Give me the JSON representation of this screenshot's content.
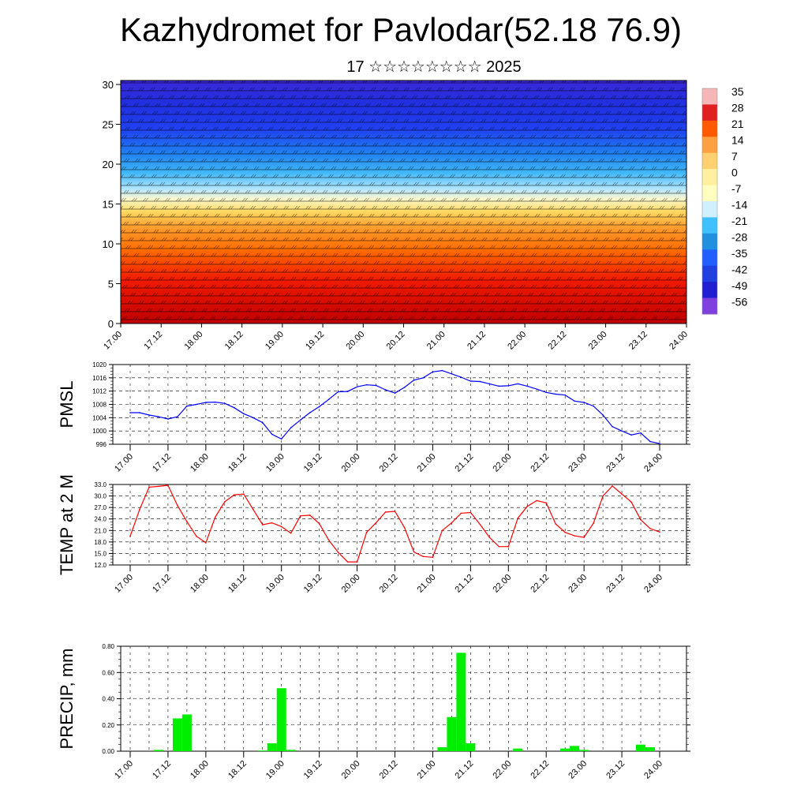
{
  "title": "Kazhydromet for Pavlodar(52.18 76.9)",
  "subtitle": "17 ☆☆☆☆☆☆☆☆ 2025",
  "time_labels": [
    "17.00",
    "17.12",
    "18.00",
    "18.12",
    "19.00",
    "19.12",
    "20.00",
    "20.12",
    "21.00",
    "21.12",
    "22.00",
    "22.12",
    "23.00",
    "23.12",
    "24.00"
  ],
  "colors": {
    "pmsl_line": "#0000ff",
    "temp_line": "#ff0000",
    "precip_bar": "#00ee00"
  },
  "chart_data": [
    {
      "type": "heatmap",
      "title": "",
      "y_ticks": [
        0,
        5,
        10,
        15,
        20,
        25,
        30
      ],
      "ylim": [
        0,
        30.5
      ],
      "x_tick_labels": [
        "17.00",
        "17.12",
        "18.00",
        "18.12",
        "19.00",
        "19.12",
        "20.00",
        "20.12",
        "21.00",
        "21.12",
        "22.00",
        "22.12",
        "23.00",
        "23.12",
        "24.00"
      ],
      "colorbar_labels": [
        "35",
        "28",
        "21",
        "14",
        "7",
        "0",
        "-7",
        "-14",
        "-21",
        "-28",
        "-35",
        "-42",
        "-49",
        "-56"
      ],
      "colorbar_colors": [
        "#f4b6b6",
        "#e02020",
        "#ff5a00",
        "#ffa040",
        "#ffd070",
        "#fff0a0",
        "#ffffc0",
        "#d0f0ff",
        "#40c0ff",
        "#2090e0",
        "#2060ff",
        "#2040e0",
        "#2020d0",
        "#8040e0"
      ]
    },
    {
      "type": "line",
      "ylabel": "PMSL",
      "ylim": [
        996,
        1020
      ],
      "yticks": [
        996,
        1000,
        1004,
        1008,
        1012,
        1016,
        1020
      ],
      "x_tick_labels": [
        "17.00",
        "17.12",
        "18.00",
        "18.12",
        "19.00",
        "19.12",
        "20.00",
        "20.12",
        "21.00",
        "21.12",
        "22.00",
        "22.12",
        "23.00",
        "23.12",
        "24.00"
      ],
      "x": [
        0,
        3,
        6,
        9,
        12,
        15,
        18,
        21,
        24,
        27,
        30,
        33,
        36,
        39,
        42,
        45,
        48,
        51,
        54,
        57,
        60,
        63,
        66,
        69,
        72,
        75,
        78,
        81,
        84,
        87,
        90,
        93,
        96,
        99,
        102,
        105,
        108,
        111,
        114,
        117,
        120,
        123,
        126,
        129,
        132,
        135,
        138,
        141,
        144,
        147,
        150,
        153,
        156,
        159,
        162,
        165,
        168
      ],
      "series": [
        {
          "values": [
            1005.5,
            1005.5,
            1004.8,
            1004.3,
            1003.6,
            1004.3,
            1007.5,
            1008.0,
            1008.6,
            1008.7,
            1008.3,
            1007.0,
            1005.2,
            1004.0,
            1002.5,
            999.0,
            997.6,
            1001.0,
            1003.3,
            1005.5,
            1007.3,
            1009.5,
            1011.8,
            1011.9,
            1013.3,
            1013.9,
            1013.7,
            1012.4,
            1011.4,
            1013.1,
            1015.3,
            1016.0,
            1017.8,
            1018.2,
            1017.2,
            1016.2,
            1015.0,
            1014.9,
            1014.2,
            1013.5,
            1013.6,
            1014.2,
            1013.5,
            1012.6,
            1011.6,
            1011.1,
            1010.8,
            1009.0,
            1008.6,
            1007.5,
            1004.8,
            1001.3,
            1000.0,
            998.8,
            999.4,
            996.8,
            996.2
          ]
        }
      ]
    },
    {
      "type": "line",
      "ylabel": "TEMP at 2 M",
      "ylim": [
        12,
        33
      ],
      "yticks": [
        "12.0",
        "15.0",
        "18.0",
        "21.0",
        "24.0",
        "27.0",
        "30.0",
        "33.0"
      ],
      "x_tick_labels": [
        "17.00",
        "17.12",
        "18.00",
        "18.12",
        "19.00",
        "19.12",
        "20.00",
        "20.12",
        "21.00",
        "21.12",
        "22.00",
        "22.12",
        "23.00",
        "23.12",
        "24.00"
      ],
      "x": [
        0,
        3,
        6,
        9,
        12,
        15,
        18,
        21,
        24,
        27,
        30,
        33,
        36,
        39,
        42,
        45,
        48,
        51,
        54,
        57,
        60,
        63,
        66,
        69,
        72,
        75,
        78,
        81,
        84,
        87,
        90,
        93,
        96,
        99,
        102,
        105,
        108,
        111,
        114,
        117,
        120,
        123,
        126,
        129,
        132,
        135,
        138,
        141,
        144,
        147,
        150,
        153,
        156,
        159,
        162,
        165,
        168
      ],
      "series": [
        {
          "values": [
            19.5,
            26.5,
            32.3,
            32.5,
            32.8,
            27.5,
            23.3,
            19.5,
            17.8,
            24.5,
            28.5,
            30.3,
            30.5,
            26.5,
            22.5,
            23.0,
            22.0,
            20.3,
            24.8,
            25.0,
            22.8,
            18.5,
            15.3,
            12.8,
            12.8,
            20.5,
            23.0,
            25.8,
            26.0,
            21.8,
            15.4,
            14.2,
            14.0,
            21.0,
            23.0,
            25.5,
            25.7,
            22.6,
            19.2,
            16.8,
            16.8,
            24.2,
            27.3,
            28.8,
            28.2,
            22.7,
            20.5,
            19.6,
            19.2,
            22.9,
            30.0,
            32.6,
            30.5,
            28.4,
            23.8,
            21.5,
            20.6
          ]
        }
      ]
    },
    {
      "type": "bar",
      "ylabel": "PRECIP, mm",
      "ylim": [
        0,
        0.8
      ],
      "yticks": [
        "0.00",
        "0.20",
        "0.40",
        "0.60",
        "0.80"
      ],
      "x_tick_labels": [
        "17.00",
        "17.12",
        "18.00",
        "18.12",
        "19.00",
        "19.12",
        "20.00",
        "20.12",
        "21.00",
        "21.12",
        "22.00",
        "22.12",
        "23.00",
        "23.12",
        "24.00"
      ],
      "x": [
        9,
        15,
        18,
        42,
        45,
        48,
        51,
        99,
        102,
        105,
        108,
        123,
        138,
        141,
        144,
        162,
        165
      ],
      "values": [
        0.01,
        0.25,
        0.28,
        0.005,
        0.06,
        0.48,
        0.01,
        0.03,
        0.26,
        0.75,
        0.06,
        0.02,
        0.02,
        0.04,
        0.01,
        0.05,
        0.03
      ]
    }
  ]
}
